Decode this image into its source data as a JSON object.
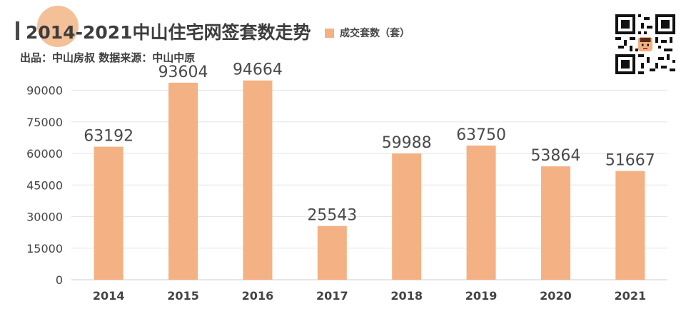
{
  "header": {
    "title": "2014-2021中山住宅网签套数走势",
    "subtitle": "出品：中山房叔    数据来源：中山中原"
  },
  "colors": {
    "bar": "#f4b183",
    "grid": "#e6e6e6",
    "text": "#444444"
  },
  "chart_data": {
    "type": "bar",
    "categories": [
      "2014",
      "2015",
      "2016",
      "2017",
      "2018",
      "2019",
      "2020",
      "2021"
    ],
    "series": [
      {
        "name": "成交套数（套）",
        "values": [
          63192,
          93604,
          94664,
          25543,
          59988,
          63750,
          53864,
          51667
        ]
      }
    ],
    "ylim": [
      0,
      100000
    ],
    "yticks": [
      0,
      15000,
      30000,
      45000,
      60000,
      75000,
      90000
    ],
    "grid": true,
    "legend": "top"
  }
}
